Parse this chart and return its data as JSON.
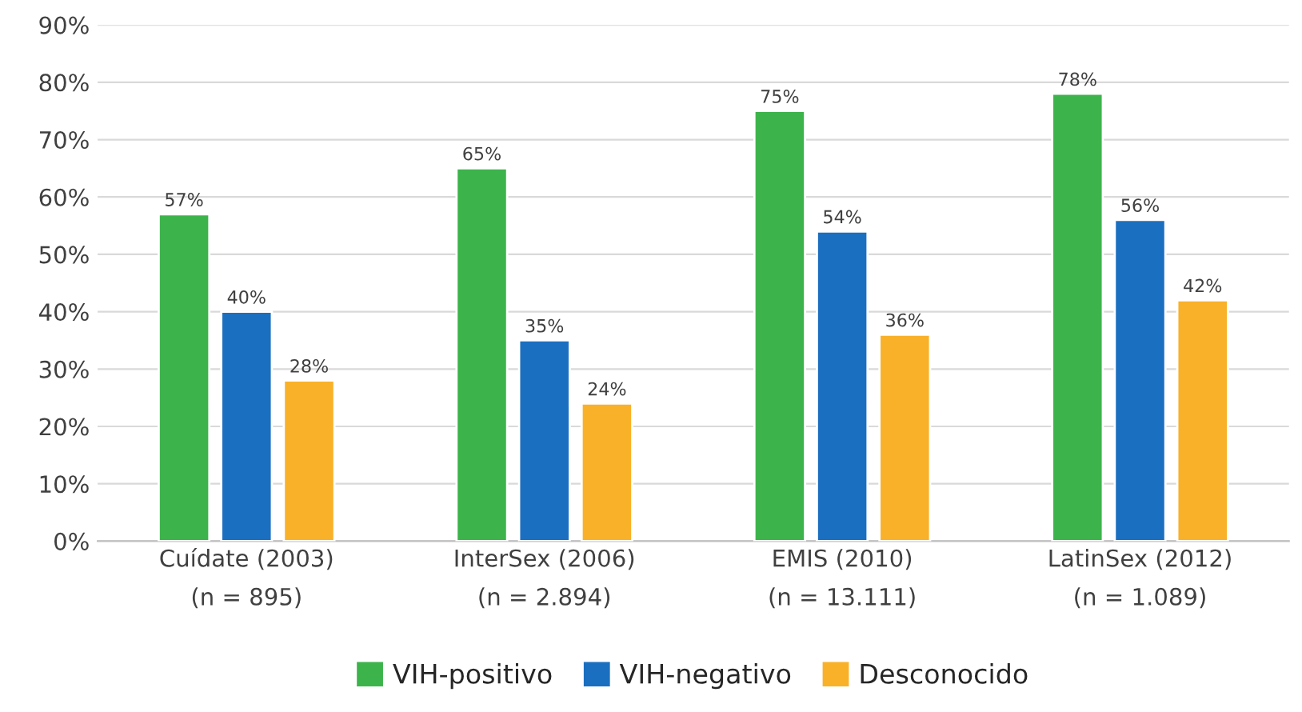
{
  "chart_data": {
    "type": "bar",
    "categories": [
      "Cuídate (2003)\n(n = 895)",
      "InterSex (2006)\n(n = 2.894)",
      "EMIS (2010)\n(n = 13.111)",
      "LatinSex (2012)\n(n = 1.089)"
    ],
    "series": [
      {
        "name": "VIH-positivo",
        "color": "#3cb44b",
        "values": [
          57,
          65,
          75,
          78
        ],
        "value_labels": [
          "57%",
          "65%",
          "75%",
          "78%"
        ]
      },
      {
        "name": "VIH-negativo",
        "color": "#1b6fc0",
        "values": [
          40,
          35,
          54,
          56
        ],
        "value_labels": [
          "40%",
          "35%",
          "54%",
          "56%"
        ]
      },
      {
        "name": "Desconocido",
        "color": "#f9b129",
        "values": [
          28,
          24,
          36,
          42
        ],
        "value_labels": [
          "28%",
          "24%",
          "36%",
          "42%"
        ]
      }
    ],
    "ylim": [
      0,
      90
    ],
    "yticks": [
      {
        "value": 0,
        "label": "0%"
      },
      {
        "value": 10,
        "label": "10%"
      },
      {
        "value": 20,
        "label": "20%"
      },
      {
        "value": 30,
        "label": "30%"
      },
      {
        "value": 40,
        "label": "40%"
      },
      {
        "value": 50,
        "label": "50%"
      },
      {
        "value": 60,
        "label": "60%"
      },
      {
        "value": 70,
        "label": "70%"
      },
      {
        "value": 80,
        "label": "80%"
      },
      {
        "value": 90,
        "label": "90%"
      }
    ],
    "grid": "y",
    "legend": "bottom"
  }
}
